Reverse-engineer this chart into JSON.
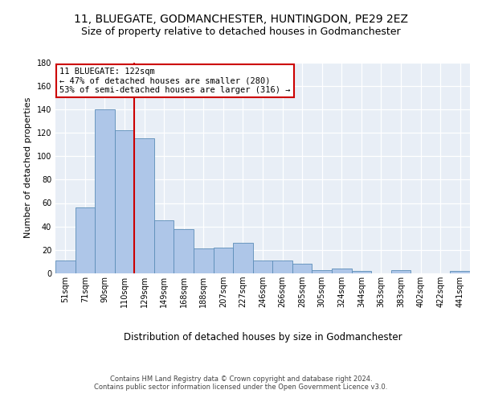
{
  "title1": "11, BLUEGATE, GODMANCHESTER, HUNTINGDON, PE29 2EZ",
  "title2": "Size of property relative to detached houses in Godmanchester",
  "xlabel": "Distribution of detached houses by size in Godmanchester",
  "ylabel": "Number of detached properties",
  "categories": [
    "51sqm",
    "71sqm",
    "90sqm",
    "110sqm",
    "129sqm",
    "149sqm",
    "168sqm",
    "188sqm",
    "207sqm",
    "227sqm",
    "246sqm",
    "266sqm",
    "285sqm",
    "305sqm",
    "324sqm",
    "344sqm",
    "363sqm",
    "383sqm",
    "402sqm",
    "422sqm",
    "441sqm"
  ],
  "values": [
    11,
    56,
    140,
    122,
    115,
    45,
    38,
    21,
    22,
    26,
    11,
    11,
    8,
    3,
    4,
    2,
    0,
    3,
    0,
    0,
    2
  ],
  "bar_color": "#aec6e8",
  "bar_edge_color": "#5b8db8",
  "ylim": [
    0,
    180
  ],
  "yticks": [
    0,
    20,
    40,
    60,
    80,
    100,
    120,
    140,
    160,
    180
  ],
  "vline_position": 3.5,
  "vline_color": "#cc0000",
  "annotation_line1": "11 BLUEGATE: 122sqm",
  "annotation_line2": "← 47% of detached houses are smaller (280)",
  "annotation_line3": "53% of semi-detached houses are larger (316) →",
  "annotation_facecolor": "#ffffff",
  "annotation_edgecolor": "#cc0000",
  "bg_color": "#e8eef6",
  "grid_color": "#ffffff",
  "footer1": "Contains HM Land Registry data © Crown copyright and database right 2024.",
  "footer2": "Contains public sector information licensed under the Open Government Licence v3.0.",
  "title1_fontsize": 10,
  "title2_fontsize": 9,
  "ylabel_fontsize": 8,
  "xlabel_fontsize": 8.5,
  "tick_fontsize": 7,
  "footer_fontsize": 6,
  "annotation_fontsize": 7.5
}
